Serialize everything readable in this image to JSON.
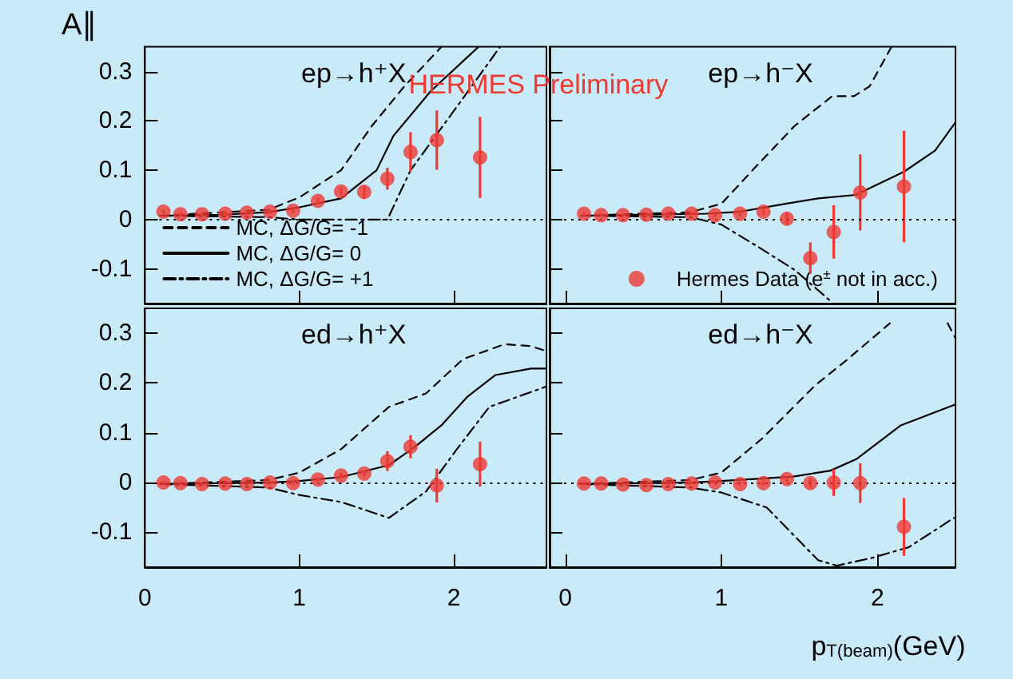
{
  "chart_data": [
    {
      "type": "line",
      "title": "ep→h⁺X",
      "ylabel": "A∥",
      "annotations": [
        "HERMES Preliminary"
      ],
      "xlim": [
        0,
        2.6
      ],
      "xticks": [
        0,
        1,
        2
      ],
      "ylim": [
        -0.17,
        0.35
      ],
      "yticks": [
        -0.1,
        0,
        0.1,
        0.2,
        0.3
      ],
      "tick_labels": "y",
      "grid": false,
      "legend": "bottom left",
      "ref_lines": [
        {
          "axis": "y",
          "value": 0,
          "color": "#000000",
          "line_style": "dotted"
        }
      ],
      "series": [
        {
          "name": "MC, ΔG/G= -1",
          "color": "#000000",
          "line_style": "dashed",
          "marker": "none",
          "x": [
            0.1,
            0.8,
            1.0,
            1.27,
            1.47,
            1.68,
            1.92
          ],
          "values": [
            0.008,
            0.02,
            0.045,
            0.1,
            0.19,
            0.27,
            0.35
          ]
        },
        {
          "name": "MC, ΔG/G= 0",
          "color": "#000000",
          "line_style": "solid",
          "marker": "none",
          "x": [
            0.1,
            0.5,
            0.8,
            1.0,
            1.27,
            1.5,
            1.61,
            1.85,
            2.16
          ],
          "values": [
            0.008,
            0.01,
            0.015,
            0.025,
            0.043,
            0.1,
            0.17,
            0.26,
            0.35
          ]
        },
        {
          "name": "MC, ΔG/G= +1",
          "color": "#000000",
          "line_style": "dashdot",
          "marker": "none",
          "x": [
            0.1,
            0.8,
            1.0,
            1.57,
            1.72,
            2.0,
            2.3
          ],
          "values": [
            0.008,
            0.005,
            0.0,
            0.0,
            0.1,
            0.22,
            0.35
          ]
        },
        {
          "type": "scatter",
          "color": "#ee3a33",
          "marker": "circle",
          "x": [
            0.12,
            0.23,
            0.37,
            0.52,
            0.66,
            0.81,
            0.96,
            1.12,
            1.27,
            1.42,
            1.57,
            1.72,
            1.89,
            2.17
          ],
          "values": [
            0.016,
            0.011,
            0.011,
            0.012,
            0.014,
            0.016,
            0.018,
            0.038,
            0.057,
            0.056,
            0.083,
            0.137,
            0.161,
            0.126
          ],
          "errors": [
            0.004,
            0.004,
            0.004,
            0.004,
            0.004,
            0.004,
            0.005,
            0.006,
            0.008,
            0.014,
            0.022,
            0.04,
            0.06,
            0.082
          ]
        }
      ]
    },
    {
      "type": "line",
      "title": "ep→h⁻X",
      "xlim": [
        -0.1,
        2.5
      ],
      "xticks": [
        0,
        1,
        2
      ],
      "ylim": [
        -0.17,
        0.35
      ],
      "yticks": [
        -0.1,
        0,
        0.1,
        0.2,
        0.3
      ],
      "tick_labels": false,
      "grid": false,
      "legend": "bottom right",
      "ref_lines": [
        {
          "axis": "y",
          "value": 0,
          "color": "#000000",
          "line_style": "dotted"
        }
      ],
      "series": [
        {
          "color": "#000000",
          "line_style": "dashed",
          "marker": "none",
          "x": [
            0.1,
            0.8,
            1.0,
            1.2,
            1.47,
            1.71,
            1.85,
            1.95,
            2.09
          ],
          "values": [
            0.008,
            0.015,
            0.032,
            0.1,
            0.19,
            0.25,
            0.25,
            0.27,
            0.35
          ]
        },
        {
          "color": "#000000",
          "line_style": "solid",
          "marker": "none",
          "x": [
            0.1,
            0.9,
            1.12,
            1.41,
            1.62,
            1.86,
            2.17,
            2.37,
            2.5
          ],
          "values": [
            0.008,
            0.012,
            0.016,
            0.032,
            0.043,
            0.05,
            0.097,
            0.14,
            0.197
          ]
        },
        {
          "color": "#000000",
          "line_style": "dashdot",
          "marker": "none",
          "x": [
            0.1,
            0.8,
            1.0,
            1.23,
            1.47,
            1.7
          ],
          "values": [
            0.008,
            0.005,
            -0.01,
            -0.054,
            -0.102,
            -0.165
          ]
        },
        {
          "name": "Hermes Data (e$^{±}$ not in acc.)",
          "type": "scatter",
          "color": "#ee3a33",
          "marker": "circle",
          "x": [
            0.12,
            0.23,
            0.37,
            0.52,
            0.66,
            0.81,
            0.96,
            1.12,
            1.27,
            1.42,
            1.57,
            1.72,
            1.89,
            2.17
          ],
          "values": [
            0.012,
            0.009,
            0.009,
            0.01,
            0.012,
            0.012,
            0.009,
            0.012,
            0.016,
            0.002,
            -0.078,
            -0.025,
            0.055,
            0.067
          ],
          "errors": [
            0.004,
            0.004,
            0.004,
            0.004,
            0.004,
            0.004,
            0.004,
            0.005,
            0.006,
            0.012,
            0.032,
            0.054,
            0.077,
            0.113
          ]
        }
      ]
    },
    {
      "type": "line",
      "title": "ed→h⁺X",
      "xlim": [
        0,
        2.6
      ],
      "xticks": [
        0,
        1,
        2
      ],
      "ylim": [
        -0.17,
        0.35
      ],
      "yticks": [
        -0.1,
        0,
        0.1,
        0.2,
        0.3
      ],
      "grid": false,
      "ref_lines": [
        {
          "axis": "y",
          "value": 0,
          "color": "#000000",
          "line_style": "dotted"
        }
      ],
      "series": [
        {
          "color": "#000000",
          "line_style": "dashed",
          "marker": "none",
          "x": [
            0.1,
            0.8,
            1.0,
            1.27,
            1.58,
            1.82,
            2.06,
            2.33,
            2.5,
            2.6
          ],
          "values": [
            -0.003,
            0.005,
            0.02,
            0.067,
            0.152,
            0.179,
            0.248,
            0.278,
            0.274,
            0.264
          ]
        },
        {
          "color": "#000000",
          "line_style": "solid",
          "marker": "none",
          "x": [
            0.1,
            0.8,
            1.0,
            1.27,
            1.58,
            1.75,
            1.92,
            2.09,
            2.27,
            2.5,
            2.6
          ],
          "values": [
            -0.003,
            0,
            0.003,
            0.011,
            0.035,
            0.072,
            0.115,
            0.173,
            0.216,
            0.229,
            0.229
          ]
        },
        {
          "color": "#000000",
          "line_style": "dashdot",
          "marker": "none",
          "x": [
            0.1,
            0.8,
            1.0,
            1.27,
            1.58,
            1.82,
            2.02,
            2.23,
            2.6
          ],
          "values": [
            -0.003,
            -0.01,
            -0.025,
            -0.039,
            -0.071,
            -0.018,
            0.067,
            0.152,
            0.193
          ]
        },
        {
          "type": "scatter",
          "color": "#ee3a33",
          "marker": "circle",
          "x": [
            0.12,
            0.23,
            0.37,
            0.52,
            0.66,
            0.81,
            0.96,
            1.12,
            1.27,
            1.42,
            1.57,
            1.72,
            1.89,
            2.17
          ],
          "values": [
            0,
            -0.001,
            -0.003,
            -0.002,
            -0.003,
            0,
            -0.001,
            0.006,
            0.014,
            0.018,
            0.043,
            0.072,
            -0.006,
            0.037
          ],
          "errors": [
            0.003,
            0.003,
            0.003,
            0.003,
            0.003,
            0.003,
            0.004,
            0.004,
            0.005,
            0.006,
            0.02,
            0.023,
            0.034,
            0.045
          ]
        }
      ]
    },
    {
      "type": "line",
      "title": "ed→h⁻X",
      "xlabel": "p$_{T(beam)}$(GeV)",
      "xlim": [
        -0.1,
        2.5
      ],
      "xticks": [
        0,
        1,
        2
      ],
      "ylim": [
        -0.17,
        0.35
      ],
      "yticks": [
        -0.1,
        0,
        0.1,
        0.2,
        0.3
      ],
      "tick_labels": "x",
      "grid": false,
      "ref_lines": [
        {
          "axis": "y",
          "value": 0,
          "color": "#000000",
          "line_style": "dotted"
        }
      ],
      "series": [
        {
          "color": "#000000",
          "line_style": "dashed",
          "marker": "none",
          "x": [
            0.1,
            0.8,
            1.0,
            1.26,
            1.6,
            1.81,
            2.08,
            2.3,
            2.45,
            2.5
          ],
          "values": [
            -0.003,
            0.005,
            0.02,
            0.088,
            0.195,
            0.248,
            0.32,
            null,
            0.32,
            0.29
          ]
        },
        {
          "color": "#000000",
          "line_style": "solid",
          "marker": "none",
          "x": [
            0.1,
            0.8,
            1.0,
            1.46,
            1.7,
            1.87,
            2.15,
            2.5
          ],
          "values": [
            -0.003,
            0,
            0.003,
            0.012,
            0.024,
            0.048,
            0.115,
            0.157
          ]
        },
        {
          "color": "#000000",
          "line_style": "dashdot",
          "marker": "none",
          "x": [
            0.1,
            0.8,
            1.0,
            1.29,
            1.62,
            1.74,
            1.97,
            2.2,
            2.49
          ],
          "values": [
            -0.003,
            -0.01,
            -0.02,
            -0.05,
            -0.156,
            -0.167,
            -0.151,
            -0.13,
            -0.071
          ]
        },
        {
          "type": "scatter",
          "color": "#ee3a33",
          "marker": "circle",
          "x": [
            0.12,
            0.23,
            0.37,
            0.52,
            0.66,
            0.81,
            0.96,
            1.12,
            1.27,
            1.42,
            1.57,
            1.72,
            1.89,
            2.17
          ],
          "values": [
            -0.002,
            -0.002,
            -0.004,
            -0.005,
            -0.003,
            -0.002,
            0,
            -0.003,
            -0.001,
            0.007,
            -0.001,
            0,
            -0.001,
            -0.089
          ],
          "errors": [
            0.003,
            0.003,
            0.003,
            0.003,
            0.003,
            0.003,
            0.004,
            0.004,
            0.004,
            0.005,
            0.01,
            0.027,
            0.04,
            0.058
          ]
        }
      ]
    }
  ]
}
